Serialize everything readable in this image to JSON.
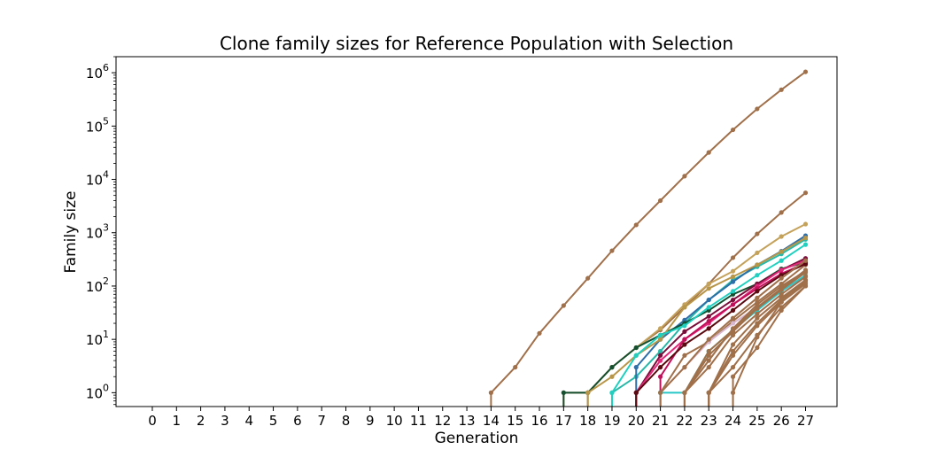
{
  "chart_data": {
    "type": "line",
    "title": "Clone family sizes for Reference Population with Selection",
    "xlabel": "Generation",
    "ylabel": "Family size",
    "y_scale": "log",
    "ylim": [
      0.55,
      2000000
    ],
    "xlim": [
      -1.5,
      28.3
    ],
    "x_ticks": [
      0,
      1,
      2,
      3,
      4,
      5,
      6,
      7,
      8,
      9,
      10,
      11,
      12,
      13,
      14,
      15,
      16,
      17,
      18,
      19,
      20,
      21,
      22,
      23,
      24,
      25,
      26,
      27
    ],
    "y_ticks": [
      {
        "value": 1,
        "base": "10",
        "exp": "0"
      },
      {
        "value": 10,
        "base": "10",
        "exp": "1"
      },
      {
        "value": 100,
        "base": "10",
        "exp": "2"
      },
      {
        "value": 1000,
        "base": "10",
        "exp": "3"
      },
      {
        "value": 10000,
        "base": "10",
        "exp": "4"
      },
      {
        "value": 100000,
        "base": "10",
        "exp": "5"
      },
      {
        "value": 1000000,
        "base": "10",
        "exp": "6"
      }
    ],
    "grid": false,
    "legend": "none",
    "series": [
      {
        "color": "#a0704a",
        "x": [
          14,
          15,
          16,
          17,
          18,
          19,
          20,
          21,
          22,
          23,
          24,
          25,
          26,
          27
        ],
        "y": [
          1,
          3,
          13,
          43,
          140,
          460,
          1400,
          4000,
          11500,
          32000,
          85000,
          210000,
          480000,
          1040000
        ]
      },
      {
        "color": "#a0704a",
        "x": [
          18,
          19,
          20,
          21,
          22,
          23,
          24,
          25,
          26,
          27
        ],
        "y": [
          1,
          3,
          7,
          15,
          40,
          110,
          340,
          950,
          2400,
          5600
        ]
      },
      {
        "color": "#c4a25a",
        "x": [
          17,
          18,
          19,
          20,
          21,
          22,
          23,
          24,
          25,
          26,
          27
        ],
        "y": [
          1,
          1,
          3,
          7,
          16,
          45,
          110,
          190,
          420,
          850,
          1450
        ]
      },
      {
        "color": "#28b8a8",
        "x": [
          19,
          20,
          21,
          22,
          23,
          24,
          25,
          26,
          27
        ],
        "y": [
          1,
          2,
          6,
          20,
          55,
          130,
          230,
          400,
          750
        ]
      },
      {
        "color": "#2d6fa8",
        "x": [
          20,
          21,
          22,
          23,
          24,
          25,
          26,
          27
        ],
        "y": [
          3,
          10,
          23,
          55,
          120,
          250,
          450,
          880
        ]
      },
      {
        "color": "#145030",
        "x": [
          17,
          18,
          19,
          20,
          21,
          22,
          23,
          24,
          25,
          26,
          27
        ],
        "y": [
          1,
          1,
          3,
          7,
          12,
          20,
          35,
          70,
          110,
          210,
          280
        ]
      },
      {
        "color": "#b89648",
        "x": [
          18,
          19,
          20,
          21,
          22,
          23,
          24,
          25,
          26,
          27
        ],
        "y": [
          1,
          2,
          5,
          10,
          40,
          90,
          150,
          250,
          440,
          800
        ]
      },
      {
        "color": "#1fd0c0",
        "x": [
          19,
          20,
          21,
          22,
          23,
          24,
          25,
          26,
          27
        ],
        "y": [
          1,
          5,
          12,
          18,
          40,
          80,
          160,
          300,
          600
        ]
      },
      {
        "color": "#7a0e3a",
        "x": [
          20,
          21,
          22,
          23,
          24,
          25,
          26,
          27
        ],
        "y": [
          1,
          5,
          14,
          27,
          55,
          110,
          200,
          330
        ]
      },
      {
        "color": "#e0297a",
        "x": [
          20,
          21,
          22,
          23,
          24,
          25,
          26,
          27
        ],
        "y": [
          1,
          4,
          10,
          20,
          45,
          100,
          200,
          300
        ]
      },
      {
        "color": "#c0105a",
        "x": [
          21,
          22,
          23,
          24,
          25,
          26,
          27
        ],
        "y": [
          2,
          10,
          22,
          45,
          90,
          170,
          270
        ]
      },
      {
        "color": "#a0704a",
        "x": [
          21,
          22,
          23,
          24,
          25,
          26,
          27
        ],
        "y": [
          1,
          5,
          9,
          22,
          50,
          110,
          250
        ]
      },
      {
        "color": "#5a0a10",
        "x": [
          20,
          21,
          22,
          23,
          24,
          25,
          26,
          27
        ],
        "y": [
          1,
          3,
          8,
          16,
          35,
          80,
          160,
          260
        ]
      },
      {
        "color": "#d8b8d0",
        "x": [
          21,
          22,
          23,
          24,
          25,
          26,
          27
        ],
        "y": [
          1,
          3,
          9,
          20,
          40,
          80,
          150
        ]
      },
      {
        "color": "#28c8c8",
        "x": [
          21,
          22,
          23,
          24,
          25,
          26,
          27
        ],
        "y": [
          1,
          1,
          6,
          15,
          35,
          80,
          160
        ]
      },
      {
        "color": "#a0704a",
        "x": [
          22,
          23,
          24,
          25,
          26,
          27
        ],
        "y": [
          1,
          6,
          15,
          40,
          90,
          200
        ]
      },
      {
        "color": "#a0704a",
        "x": [
          22,
          23,
          24,
          25,
          26,
          27
        ],
        "y": [
          1,
          3,
          12,
          30,
          70,
          150
        ]
      },
      {
        "color": "#a0704a",
        "x": [
          23,
          24,
          25,
          26,
          27
        ],
        "y": [
          1,
          5,
          18,
          50,
          120
        ]
      },
      {
        "color": "#a0704a",
        "x": [
          23,
          24,
          25,
          26,
          27
        ],
        "y": [
          1,
          8,
          25,
          60,
          130
        ]
      },
      {
        "color": "#a0704a",
        "x": [
          23,
          24,
          25,
          26,
          27
        ],
        "y": [
          1,
          3,
          12,
          40,
          100
        ]
      },
      {
        "color": "#a0704a",
        "x": [
          24,
          25,
          26,
          27
        ],
        "y": [
          1,
          11,
          50,
          110
        ]
      },
      {
        "color": "#a0704a",
        "x": [
          24,
          25,
          26,
          27
        ],
        "y": [
          2,
          7,
          35,
          100
        ]
      },
      {
        "color": "#a0704a",
        "x": [
          22,
          23,
          24,
          25,
          26,
          27
        ],
        "y": [
          1,
          4,
          16,
          45,
          100,
          190
        ]
      },
      {
        "color": "#a0704a",
        "x": [
          21,
          22,
          23,
          24,
          25,
          26,
          27
        ],
        "y": [
          1,
          3,
          10,
          25,
          60,
          140,
          300
        ]
      },
      {
        "color": "#a0704a",
        "x": [
          22,
          23,
          24,
          25,
          26,
          27
        ],
        "y": [
          1,
          5,
          14,
          38,
          85,
          180
        ]
      },
      {
        "color": "#a0704a",
        "x": [
          23,
          24,
          25,
          26,
          27
        ],
        "y": [
          1,
          6,
          20,
          55,
          130
        ]
      }
    ]
  }
}
